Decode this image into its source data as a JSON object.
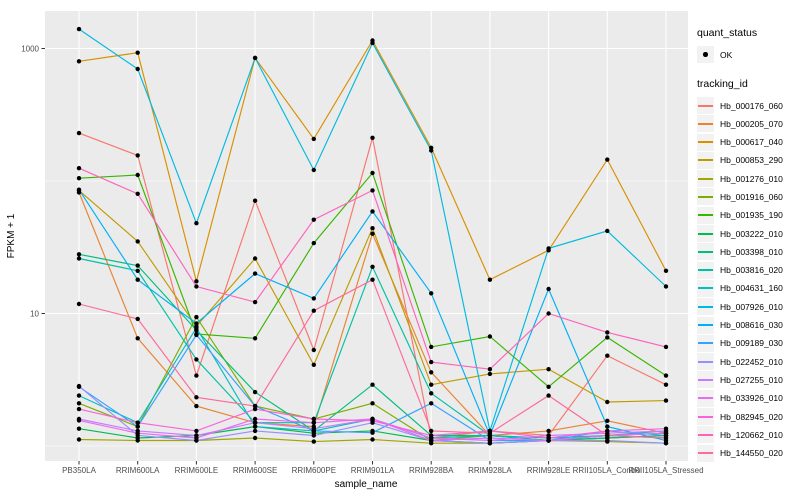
{
  "figure": {
    "background": "#FFFFFF",
    "panel_background": "#EBEBEB",
    "gridline_color": "#FFFFFF",
    "tick_mark_color": "#333333",
    "tick_label_color": "#4D4D4D",
    "axis_title_color": "#000000",
    "point_color": "#000000",
    "legend_key_background": "#F2F2F2"
  },
  "chart_data": {
    "type": "line",
    "title": "",
    "xlabel": "sample_name",
    "ylabel": "FPKM + 1",
    "y_scale": "log10",
    "grid": "on",
    "legend_position": "right",
    "y_axis_ticks": [
      {
        "label": "1000",
        "value": 1000
      },
      {
        "label": "10",
        "value": 10
      }
    ],
    "y_minor_gridlines": [
      100,
      1
    ],
    "ylim_log10": [
      -0.12,
      3.28
    ],
    "legend": {
      "quant_title": "quant_status",
      "quant_items": [
        {
          "label": "OK",
          "symbol": "black-point"
        }
      ],
      "series_title": "tracking_id"
    },
    "categories": [
      "PB350LA",
      "RRIM600LA",
      "RRIM600LE",
      "RRIM600SE",
      "RRIM600PE",
      "RRIM901LA",
      "RRIM928BA",
      "RRIM928LA",
      "RRIM928LE",
      "RRII105LA_Control",
      "RRII105LA_Stressed"
    ],
    "series": [
      {
        "name": "Hb_000176_060",
        "color": "#F8766D",
        "values": [
          230,
          156,
          3.4,
          71,
          5.3,
          212,
          1.15,
          1.3,
          1.2,
          4.8,
          2.9
        ]
      },
      {
        "name": "Hb_000205_070",
        "color": "#EA8331",
        "values": [
          82,
          6.5,
          2.0,
          1.5,
          1.4,
          40,
          3.6,
          1.2,
          1.3,
          1.55,
          1.25
        ]
      },
      {
        "name": "Hb_000617_040",
        "color": "#D89000",
        "values": [
          800,
          930,
          17.5,
          850,
          208,
          1150,
          178,
          18,
          30,
          145,
          21
        ]
      },
      {
        "name": "Hb_000853_290",
        "color": "#C09B00",
        "values": [
          85,
          35,
          8,
          26,
          4.1,
          44,
          2.9,
          3.5,
          3.8,
          2.15,
          2.2
        ]
      },
      {
        "name": "Hb_001276_010",
        "color": "#A3A500",
        "values": [
          1.12,
          1.1,
          1.1,
          1.15,
          1.08,
          1.12,
          1.05,
          1.05,
          1.1,
          1.08,
          1.05
        ]
      },
      {
        "name": "Hb_001916_060",
        "color": "#7CAE00",
        "values": [
          2.1,
          1.4,
          9.4,
          2.0,
          1.6,
          2.1,
          1.1,
          1.2,
          1.1,
          1.2,
          1.15
        ]
      },
      {
        "name": "Hb_001935_190",
        "color": "#39B600",
        "values": [
          105,
          111,
          7.0,
          6.5,
          34,
          115,
          5.6,
          6.7,
          2.8,
          6.6,
          3.4
        ]
      },
      {
        "name": "Hb_003222_010",
        "color": "#00BB4E",
        "values": [
          1.35,
          1.15,
          1.2,
          1.4,
          1.25,
          1.3,
          1.1,
          1.05,
          1.1,
          1.15,
          1.2
        ]
      },
      {
        "name": "Hb_003398_010",
        "color": "#00BF7D",
        "values": [
          28,
          23,
          7.5,
          2.55,
          1.3,
          2.9,
          1.2,
          1.2,
          1.1,
          1.15,
          1.2
        ]
      },
      {
        "name": "Hb_003816_020",
        "color": "#00C1A3",
        "values": [
          26,
          21,
          4.5,
          1.5,
          1.5,
          22.5,
          2.5,
          1.2,
          1.15,
          1.2,
          1.3
        ]
      },
      {
        "name": "Hb_004631_160",
        "color": "#00BFC4",
        "values": [
          2.4,
          1.5,
          7.8,
          1.4,
          1.3,
          1.6,
          1.15,
          1.2,
          1.1,
          1.2,
          1.25
        ]
      },
      {
        "name": "Hb_007926_010",
        "color": "#00BAE0",
        "values": [
          1400,
          700,
          48,
          850,
          121,
          1100,
          170,
          1.3,
          31,
          42,
          16
        ]
      },
      {
        "name": "Hb_008616_030",
        "color": "#00B0F6",
        "values": [
          86,
          18,
          8.4,
          20,
          13,
          59,
          14.2,
          1.2,
          15.3,
          1.4,
          1.1
        ]
      },
      {
        "name": "Hb_009189_030",
        "color": "#35A2FF",
        "values": [
          2.8,
          1.4,
          6.9,
          2.0,
          1.3,
          1.26,
          2.1,
          1.1,
          1.1,
          1.3,
          1.2
        ]
      },
      {
        "name": "Hb_022452_010",
        "color": "#9590FF",
        "values": [
          2.83,
          1.2,
          1.1,
          1.3,
          1.2,
          1.5,
          1.1,
          1.05,
          1.1,
          1.1,
          1.05
        ]
      },
      {
        "name": "Hb_027255_010",
        "color": "#C77CFF",
        "values": [
          1.6,
          1.3,
          1.2,
          1.5,
          1.35,
          1.6,
          1.15,
          1.1,
          1.2,
          1.25,
          1.3
        ]
      },
      {
        "name": "Hb_033926_010",
        "color": "#E76BF3",
        "values": [
          1.56,
          1.25,
          1.15,
          1.6,
          1.5,
          1.6,
          1.1,
          1.15,
          1.1,
          1.2,
          1.25
        ]
      },
      {
        "name": "Hb_082945_020",
        "color": "#FA62DB",
        "values": [
          1.9,
          1.5,
          1.3,
          1.9,
          1.6,
          1.55,
          1.2,
          1.3,
          1.15,
          1.3,
          1.35
        ]
      },
      {
        "name": "Hb_120662_010",
        "color": "#FF62BC",
        "values": [
          125,
          80,
          16,
          12.2,
          51,
          85,
          4.3,
          3.8,
          10,
          7.2,
          5.6
        ]
      },
      {
        "name": "Hb_144550_020",
        "color": "#FF6A98",
        "values": [
          11.8,
          9.1,
          2.33,
          2.0,
          10.5,
          18,
          1.3,
          1.25,
          2.4,
          1.2,
          1.15
        ]
      }
    ]
  }
}
